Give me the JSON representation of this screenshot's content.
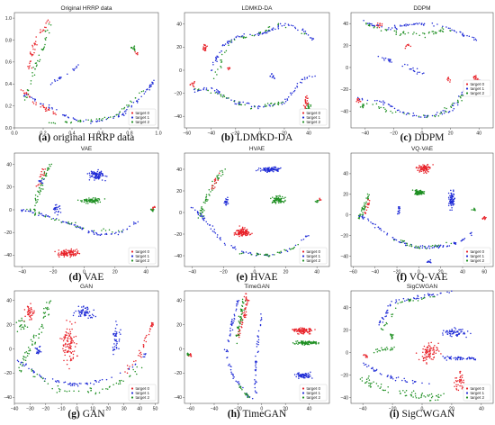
{
  "chart_data": [
    {
      "type": "scatter",
      "title": "Original HRRP data",
      "caption_letter": "(a)",
      "caption_text": " original HRRP data",
      "xlim": [
        0,
        1
      ],
      "ylim": [
        0,
        1.05
      ],
      "xticks": [
        "0.0",
        "0.2",
        "0.4",
        "0.6",
        "0.8",
        "1.0"
      ],
      "yticks": [
        "0.0",
        "0.2",
        "0.4",
        "0.6",
        "0.8",
        "1.0"
      ],
      "legend": [
        "target 0",
        "target 1",
        "target 2"
      ],
      "legend_position": "bottom-right"
    },
    {
      "type": "scatter",
      "title": "LDMKD-DA",
      "caption_letter": "(b)",
      "caption_text": " LDMKD-DA",
      "xlim": [
        -62,
        57
      ],
      "ylim": [
        -50,
        50
      ],
      "xticks": [
        "−60",
        "−40",
        "−20",
        "0",
        "20",
        "40"
      ],
      "yticks": [
        "−40",
        "−20",
        "0",
        "20",
        "40"
      ],
      "legend": [
        "target 0",
        "target 1",
        "target 2"
      ],
      "legend_position": "bottom-right"
    },
    {
      "type": "scatter",
      "title": "DDPM",
      "caption_letter": "(c)",
      "caption_text": " DDPM",
      "xlim": [
        -50,
        50
      ],
      "ylim": [
        -55,
        50
      ],
      "xticks": [
        "−40",
        "−20",
        "0",
        "20",
        "40"
      ],
      "yticks": [
        "−40",
        "−20",
        "0",
        "20",
        "40"
      ],
      "legend": [
        "target 0",
        "target 1",
        "target 2"
      ],
      "legend_position": "right"
    },
    {
      "type": "scatter",
      "title": "VAE",
      "caption_letter": "(d)",
      "caption_text": " VAE",
      "xlim": [
        -45,
        48
      ],
      "ylim": [
        -50,
        50
      ],
      "xticks": [
        "−40",
        "−20",
        "0",
        "20",
        "40"
      ],
      "yticks": [
        "−40",
        "−20",
        "0",
        "20",
        "40"
      ],
      "legend": [
        "target 0",
        "target 1",
        "target 2"
      ],
      "legend_position": "bottom-right"
    },
    {
      "type": "scatter",
      "title": "HVAE",
      "caption_letter": "(e)",
      "caption_text": " HVAE",
      "xlim": [
        -45,
        48
      ],
      "ylim": [
        -50,
        55
      ],
      "xticks": [
        "−40",
        "−20",
        "0",
        "20",
        "40"
      ],
      "yticks": [
        "−40",
        "−20",
        "0",
        "20",
        "40"
      ],
      "legend": [
        "target 0",
        "target 1",
        "target 2"
      ],
      "legend_position": "bottom-right"
    },
    {
      "type": "scatter",
      "title": "VQ-VAE",
      "caption_letter": "(f)",
      "caption_text": " VQ-VAE",
      "xlim": [
        -62,
        68
      ],
      "ylim": [
        -50,
        60
      ],
      "xticks": [
        "−60",
        "−40",
        "−20",
        "0",
        "20",
        "40",
        "60"
      ],
      "yticks": [
        "−40",
        "−20",
        "0",
        "20",
        "40"
      ],
      "legend": [
        "target 0",
        "target 1",
        "target 2"
      ],
      "legend_position": "bottom-right"
    },
    {
      "type": "scatter",
      "title": "GAN",
      "caption_letter": "(g)",
      "caption_text": " GAN",
      "xlim": [
        -40,
        52
      ],
      "ylim": [
        -45,
        48
      ],
      "xticks": [
        "−40",
        "−30",
        "−20",
        "−10",
        "0",
        "10",
        "20",
        "30",
        "40",
        "50"
      ],
      "yticks": [
        "−40",
        "−20",
        "0",
        "20",
        "40"
      ],
      "legend": [
        "target 0",
        "target 1",
        "target 2"
      ],
      "legend_position": "bottom-right"
    },
    {
      "type": "scatter",
      "title": "TimeGAN",
      "caption_letter": "(h)",
      "caption_text": " TimeGAN",
      "xlim": [
        -65,
        57
      ],
      "ylim": [
        -45,
        48
      ],
      "xticks": [
        "−60",
        "−40",
        "−20",
        "0",
        "20",
        "40"
      ],
      "yticks": [
        "−40",
        "−20",
        "0",
        "20",
        "40"
      ],
      "legend": [
        "target 0",
        "target 1",
        "target 2"
      ],
      "legend_position": "bottom-right"
    },
    {
      "type": "scatter",
      "title": "SigCWGAN",
      "caption_letter": "(i)",
      "caption_text": " SigCWGAN",
      "xlim": [
        -48,
        48
      ],
      "ylim": [
        -45,
        55
      ],
      "xticks": [
        "−40",
        "−20",
        "0",
        "20",
        "40"
      ],
      "yticks": [
        "−40",
        "−20",
        "0",
        "20",
        "40"
      ],
      "legend": [
        "target 0",
        "target 1",
        "target 2"
      ],
      "legend_position": "bottom-right"
    }
  ],
  "colors": {
    "target0": "#e8232a",
    "target1": "#1f2bd6",
    "target2": "#1e8f22"
  }
}
